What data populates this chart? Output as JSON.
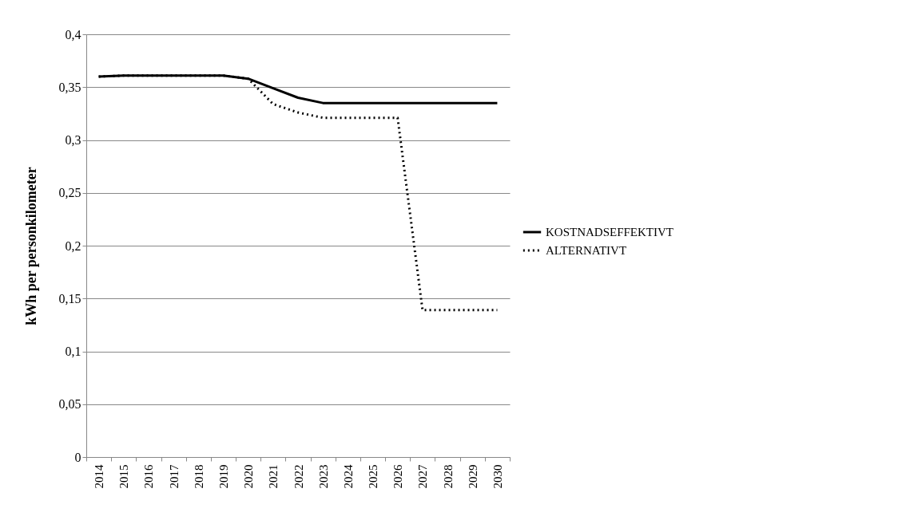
{
  "chart_data": {
    "type": "line",
    "ylabel": "kWh per personkilometer",
    "categories": [
      "2014",
      "2015",
      "2016",
      "2017",
      "2018",
      "2019",
      "2020",
      "2021",
      "2022",
      "2023",
      "2024",
      "2025",
      "2026",
      "2027",
      "2028",
      "2029",
      "2030"
    ],
    "series": [
      {
        "name": "KOSTNADSEFFEKTIVT",
        "color": "#000000",
        "line_style": "solid",
        "values": [
          0.36,
          0.361,
          0.361,
          0.361,
          0.361,
          0.361,
          0.358,
          0.349,
          0.34,
          0.335,
          0.335,
          0.335,
          0.335,
          0.335,
          0.335,
          0.335,
          0.335
        ]
      },
      {
        "name": "ALTERNATIVT",
        "color": "#000000",
        "line_style": "dotted",
        "values": [
          0.36,
          0.361,
          0.361,
          0.361,
          0.361,
          0.361,
          0.358,
          0.334,
          0.326,
          0.321,
          0.321,
          0.321,
          0.321,
          0.139,
          0.139,
          0.139,
          0.139
        ]
      }
    ],
    "ylim": [
      0,
      0.4
    ],
    "yticks": [
      {
        "value": 0,
        "label": "0"
      },
      {
        "value": 0.05,
        "label": "0,05"
      },
      {
        "value": 0.1,
        "label": "0,1"
      },
      {
        "value": 0.15,
        "label": "0,15"
      },
      {
        "value": 0.2,
        "label": "0,2"
      },
      {
        "value": 0.25,
        "label": "0,25"
      },
      {
        "value": 0.3,
        "label": "0,3"
      },
      {
        "value": 0.35,
        "label": "0,35"
      },
      {
        "value": 0.4,
        "label": "0,4"
      }
    ],
    "grid": "y",
    "legend": "right"
  }
}
